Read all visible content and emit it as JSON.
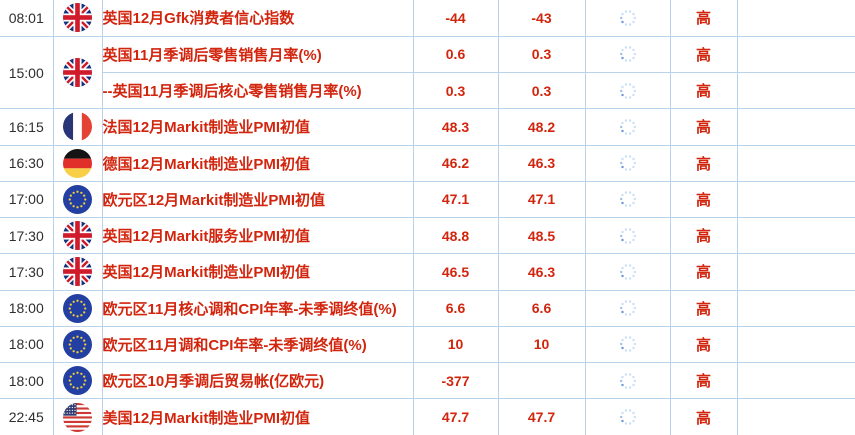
{
  "colors": {
    "accent_red": "#d2250e",
    "border_blue": "#b9d2ec",
    "time_text": "#2e2e2e",
    "spinner_light": "#cde0f6",
    "spinner_mid": "#a3c0ea",
    "spinner_dark": "#6f9bd8",
    "uk_navy": "#16307a",
    "uk_red": "#cf1b2b",
    "fr_blue": "#283577",
    "fr_red": "#e34234",
    "de_black": "#141414",
    "de_red": "#e1302a",
    "de_gold": "#f8cf46",
    "eu_blue": "#243fa2",
    "eu_star_gold": "#f7d137",
    "us_red": "#cc3a33",
    "us_canton_blue": "#323b70"
  },
  "icons": {
    "spinner": "loading-spinner-icon",
    "flags": {
      "uk": "uk-flag-icon",
      "fr": "france-flag-icon",
      "de": "germany-flag-icon",
      "eu": "eu-flag-icon",
      "us": "us-flag-icon"
    }
  },
  "table": {
    "rows": [
      {
        "time": "08:01",
        "time_rowspan": 1,
        "country": "uk",
        "event": "英国12月Gfk消费者信心指数",
        "value1": "-44",
        "value2": "-43",
        "importance": "高"
      },
      {
        "time": "15:00",
        "time_rowspan": 2,
        "country": "uk",
        "event": "英国11月季调后零售销售月率(%)",
        "value1": "0.6",
        "value2": "0.3",
        "importance": "高"
      },
      {
        "time": null,
        "country": null,
        "event": "--英国11月季调后核心零售销售月率(%)",
        "value1": "0.3",
        "value2": "0.3",
        "importance": "高"
      },
      {
        "time": "16:15",
        "time_rowspan": 1,
        "country": "fr",
        "event": "法国12月Markit制造业PMI初值",
        "value1": "48.3",
        "value2": "48.2",
        "importance": "高"
      },
      {
        "time": "16:30",
        "time_rowspan": 1,
        "country": "de",
        "event": "德国12月Markit制造业PMI初值",
        "value1": "46.2",
        "value2": "46.3",
        "importance": "高"
      },
      {
        "time": "17:00",
        "time_rowspan": 1,
        "country": "eu",
        "event": "欧元区12月Markit制造业PMI初值",
        "value1": "47.1",
        "value2": "47.1",
        "importance": "高"
      },
      {
        "time": "17:30",
        "time_rowspan": 1,
        "country": "uk",
        "event": "英国12月Markit服务业PMI初值",
        "value1": "48.8",
        "value2": "48.5",
        "importance": "高"
      },
      {
        "time": "17:30",
        "time_rowspan": 1,
        "country": "uk",
        "event": "英国12月Markit制造业PMI初值",
        "value1": "46.5",
        "value2": "46.3",
        "importance": "高"
      },
      {
        "time": "18:00",
        "time_rowspan": 1,
        "country": "eu",
        "event": "欧元区11月核心调和CPI年率-未季调终值(%)",
        "value1": "6.6",
        "value2": "6.6",
        "importance": "高"
      },
      {
        "time": "18:00",
        "time_rowspan": 1,
        "country": "eu",
        "event": "欧元区11月调和CPI年率-未季调终值(%)",
        "value1": "10",
        "value2": "10",
        "importance": "高"
      },
      {
        "time": "18:00",
        "time_rowspan": 1,
        "country": "eu",
        "event": "欧元区10月季调后贸易帐(亿欧元)",
        "value1": "-377",
        "value2": "",
        "importance": "高"
      },
      {
        "time": "22:45",
        "time_rowspan": 1,
        "country": "us",
        "event": "美国12月Markit制造业PMI初值",
        "value1": "47.7",
        "value2": "47.7",
        "importance": "高"
      }
    ]
  }
}
